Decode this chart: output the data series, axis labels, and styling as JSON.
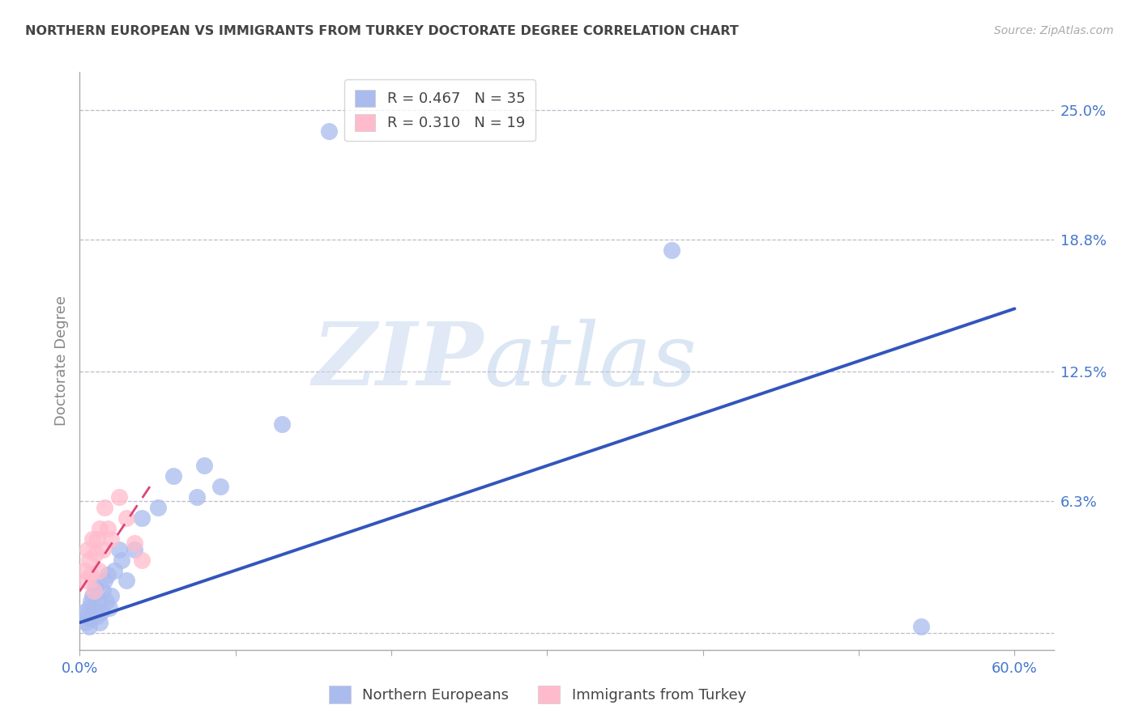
{
  "title": "NORTHERN EUROPEAN VS IMMIGRANTS FROM TURKEY DOCTORATE DEGREE CORRELATION CHART",
  "source": "Source: ZipAtlas.com",
  "ylabel": "Doctorate Degree",
  "xlim": [
    0.0,
    0.625
  ],
  "ylim": [
    -0.008,
    0.268
  ],
  "xtick_positions": [
    0.0,
    0.1,
    0.2,
    0.3,
    0.4,
    0.5,
    0.6
  ],
  "xtick_labels": [
    "0.0%",
    "",
    "",
    "",
    "",
    "",
    "60.0%"
  ],
  "ytick_positions": [
    0.0,
    0.063,
    0.125,
    0.188,
    0.25
  ],
  "ytick_labels": [
    "",
    "6.3%",
    "12.5%",
    "18.8%",
    "25.0%"
  ],
  "grid_color": "#bbbbcc",
  "bg_color": "#ffffff",
  "watermark_zip": "ZIP",
  "watermark_atlas": "atlas",
  "legend_R1": "R = 0.467",
  "legend_N1": "N = 35",
  "legend_R2": "R = 0.310",
  "legend_N2": "N = 19",
  "blue_scatter_color": "#aabbee",
  "pink_scatter_color": "#ffbbcc",
  "blue_line_color": "#3355bb",
  "pink_line_color": "#dd4477",
  "legend_label1": "Northern Europeans",
  "legend_label2": "Immigrants from Turkey",
  "ne_x": [
    0.003,
    0.004,
    0.005,
    0.006,
    0.006,
    0.007,
    0.007,
    0.008,
    0.009,
    0.01,
    0.011,
    0.012,
    0.013,
    0.014,
    0.015,
    0.016,
    0.017,
    0.018,
    0.019,
    0.02,
    0.022,
    0.025,
    0.027,
    0.03,
    0.035,
    0.04,
    0.05,
    0.06,
    0.075,
    0.08,
    0.09,
    0.13,
    0.16,
    0.38,
    0.54
  ],
  "ne_y": [
    0.01,
    0.005,
    0.008,
    0.012,
    0.003,
    0.015,
    0.007,
    0.018,
    0.01,
    0.022,
    0.008,
    0.015,
    0.005,
    0.01,
    0.02,
    0.025,
    0.015,
    0.028,
    0.012,
    0.018,
    0.03,
    0.04,
    0.035,
    0.025,
    0.04,
    0.055,
    0.06,
    0.075,
    0.065,
    0.08,
    0.07,
    0.1,
    0.24,
    0.183,
    0.003
  ],
  "it_x": [
    0.003,
    0.004,
    0.005,
    0.006,
    0.007,
    0.008,
    0.009,
    0.01,
    0.011,
    0.012,
    0.013,
    0.015,
    0.016,
    0.018,
    0.02,
    0.025,
    0.03,
    0.035,
    0.04
  ],
  "it_y": [
    0.03,
    0.025,
    0.04,
    0.035,
    0.028,
    0.045,
    0.02,
    0.038,
    0.045,
    0.03,
    0.05,
    0.04,
    0.06,
    0.05,
    0.045,
    0.065,
    0.055,
    0.043,
    0.035
  ],
  "blue_line_x0": 0.0,
  "blue_line_y0": 0.005,
  "blue_line_x1": 0.6,
  "blue_line_y1": 0.155,
  "pink_line_x0": 0.0,
  "pink_line_y0": 0.02,
  "pink_line_x1": 0.045,
  "pink_line_y1": 0.07
}
